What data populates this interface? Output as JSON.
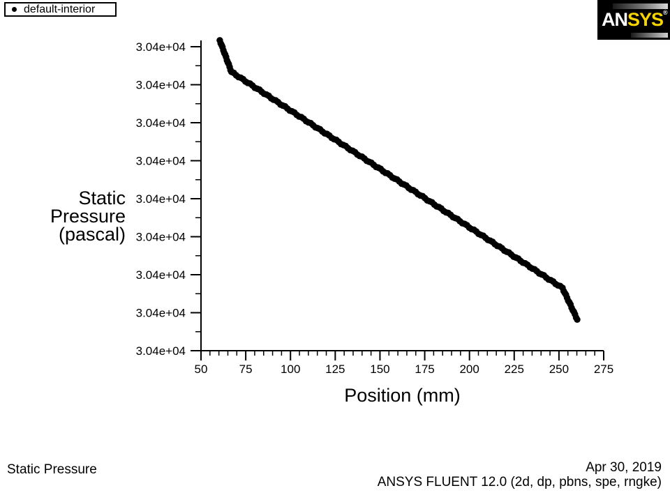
{
  "legend": {
    "series_label": "default-interior",
    "marker": "filled-circle"
  },
  "logo": {
    "prefix": "AN",
    "suffix": "SYS",
    "registered": "®",
    "bg_color": "#000000",
    "prefix_color": "#ffffff",
    "suffix_color": "#f5d400"
  },
  "chart_data": {
    "type": "scatter",
    "title": "Static Pressure",
    "xlabel": "Position (mm)",
    "ylabel": "Static Pressure (pascal)",
    "ylabel_lines": [
      "Static",
      "Pressure",
      "(pascal)"
    ],
    "x_axis": {
      "min": 50,
      "max": 275,
      "major_ticks": [
        50,
        75,
        100,
        125,
        150,
        175,
        200,
        225,
        250,
        275
      ],
      "minor_tick_step": 5
    },
    "y_axis": {
      "tick_label_repeated": "3.04e+04",
      "major_tick_count": 9,
      "minor_ticks_between_majors": 1,
      "approx_value_pascal": 30400
    },
    "grid": "off",
    "legend_position": "top-left",
    "series": [
      {
        "name": "default-interior",
        "marker": "filled-circle",
        "color": "#000000",
        "keypoints": [
          {
            "x_mm": 60.5,
            "y_frac": 1.021
          },
          {
            "x_mm": 67.0,
            "y_frac": 0.917
          },
          {
            "x_mm": 252.0,
            "y_frac": 0.206
          },
          {
            "x_mm": 260.2,
            "y_frac": 0.103
          }
        ]
      }
    ]
  },
  "footer": {
    "plot_title": "Static Pressure",
    "date": "Apr 30, 2019",
    "solver_line": "ANSYS FLUENT 12.0 (2d, dp, pbns, spe, rngke)"
  }
}
